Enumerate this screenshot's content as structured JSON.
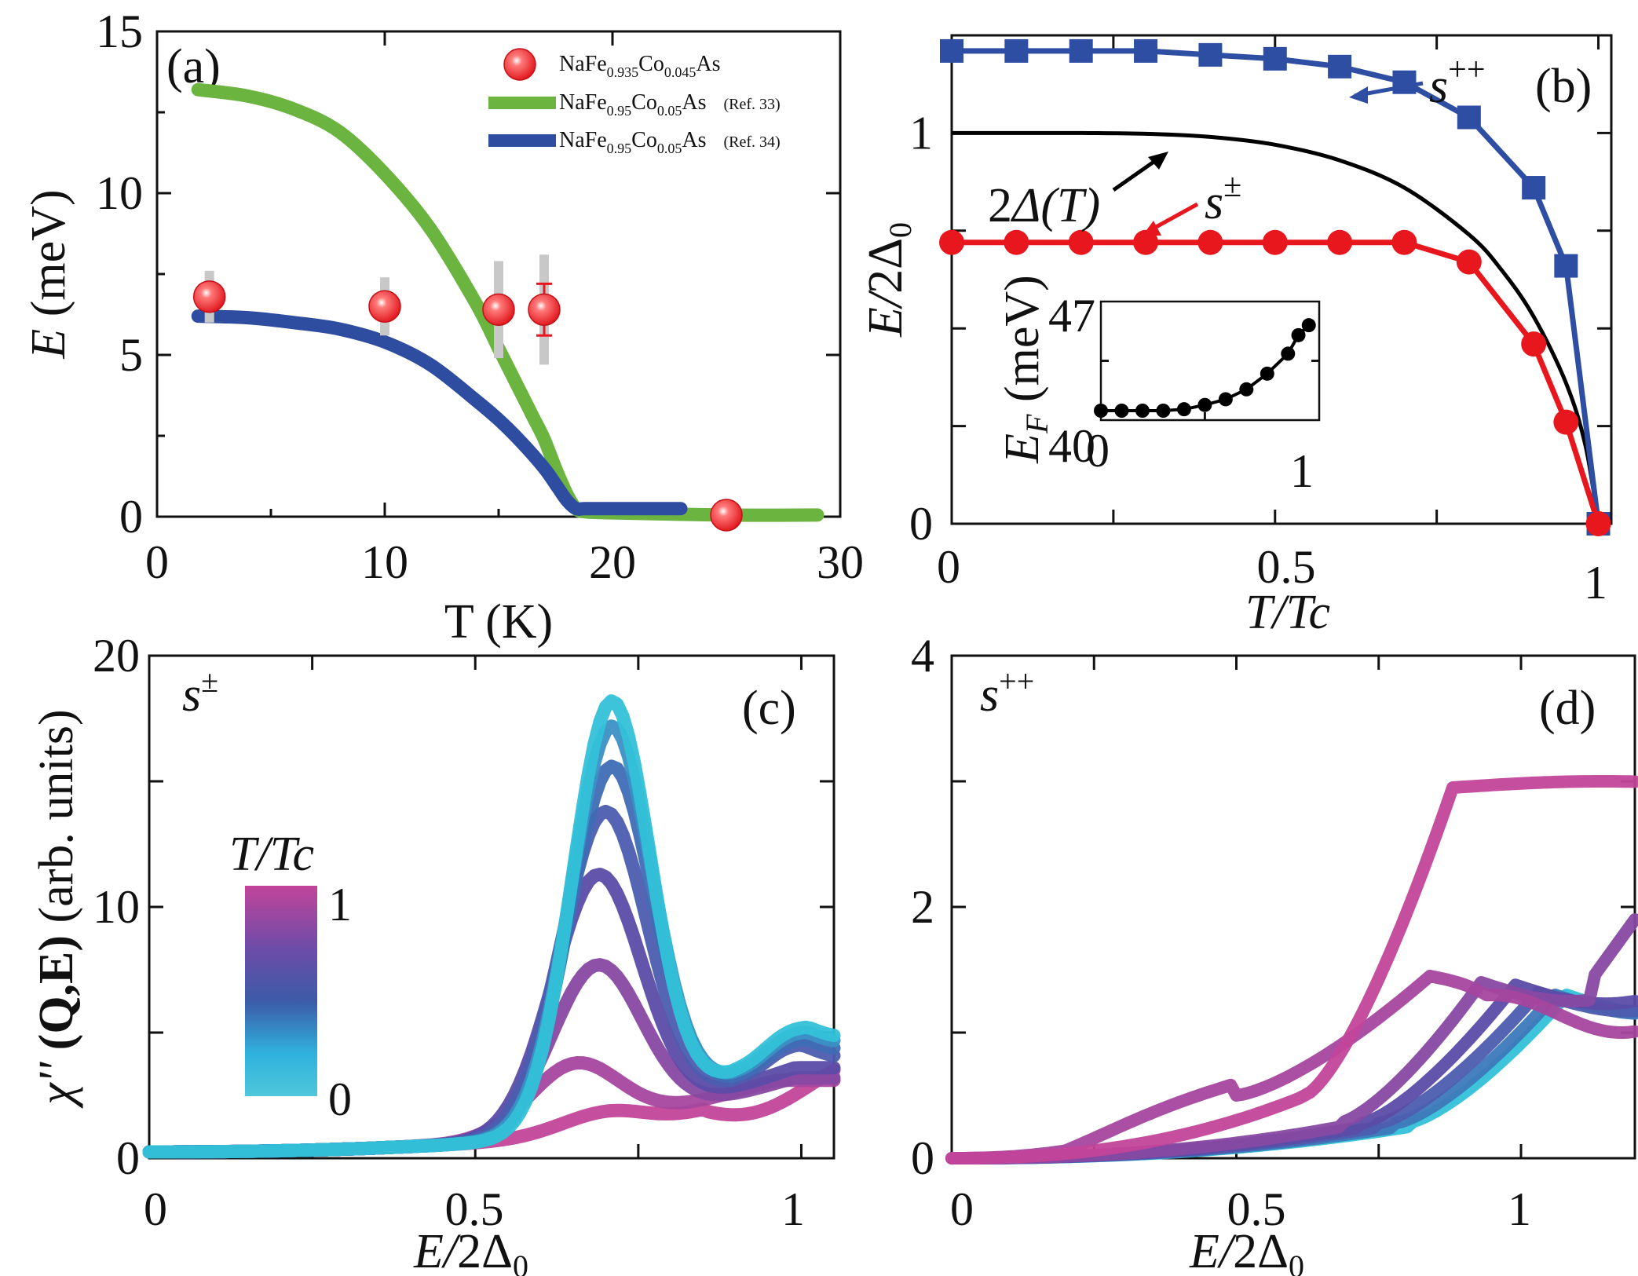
{
  "chart_data": [
    {
      "panel": "(a)",
      "type": "line",
      "xlabel": "T (K)",
      "ylabel": "E (meV)",
      "xlim": [
        0,
        30
      ],
      "ylim": [
        0,
        15
      ],
      "xticks": [
        "0",
        "10",
        "20",
        "30"
      ],
      "yticks": [
        "0",
        "5",
        "10",
        "15"
      ],
      "legend_position": "top-right",
      "series": [
        {
          "name": "NaFe0.935Co0.045As",
          "legend_parts": [
            "NaFe",
            "0.935",
            "Co",
            "0.045",
            "As",
            ""
          ],
          "kind": "points",
          "color": "#e8171d",
          "x": [
            2.3,
            10,
            15,
            17,
            25
          ],
          "y": [
            6.8,
            6.5,
            6.4,
            6.4,
            0.05
          ],
          "err": [
            0.8,
            0.9,
            1.5,
            1.7,
            0.3
          ]
        },
        {
          "name": "NaFe0.95Co0.05As (Ref. 33)",
          "legend_parts": [
            "NaFe",
            "0.95",
            "Co",
            "0.05",
            "As",
            "(Ref. 33)"
          ],
          "kind": "line",
          "color": "#6ab43f",
          "x": [
            1.8,
            4,
            6,
            8,
            10,
            12,
            14,
            15,
            16,
            16.5,
            17,
            17.5,
            18,
            18.4,
            18.8,
            20,
            25,
            29
          ],
          "y": [
            13.2,
            13.0,
            12.6,
            11.9,
            10.6,
            8.9,
            6.6,
            5.2,
            3.8,
            3.1,
            2.4,
            1.5,
            0.7,
            0.25,
            0.15,
            0.12,
            0.05,
            0.05
          ]
        },
        {
          "name": "NaFe0.95Co0.05As (Ref. 34)",
          "legend_parts": [
            "NaFe",
            "0.95",
            "Co",
            "0.05",
            "As",
            "(Ref. 34)"
          ],
          "kind": "line",
          "color": "#2e4da0",
          "x": [
            1.8,
            4,
            6,
            8,
            10,
            12,
            14,
            15,
            16,
            17,
            17.6,
            18,
            18.4,
            18.8,
            20,
            23
          ],
          "y": [
            6.2,
            6.15,
            6.0,
            5.8,
            5.4,
            4.7,
            3.6,
            3.0,
            2.3,
            1.5,
            0.9,
            0.5,
            0.25,
            0.25,
            0.25,
            0.25
          ]
        }
      ]
    },
    {
      "panel": "(b)",
      "type": "line",
      "xlabel": "T/Tc",
      "ylabel": "E/2Δ0",
      "xlim": [
        0,
        1.02
      ],
      "ylim": [
        0,
        1.25
      ],
      "xticks": [
        "0",
        "0.5",
        "1"
      ],
      "yticks": [
        "0",
        "1"
      ],
      "annotations": [
        "s++",
        "2Δ(T)",
        "s±"
      ],
      "series": [
        {
          "name": "s++",
          "color": "#2e4ea3",
          "x": [
            0,
            0.1,
            0.2,
            0.3,
            0.4,
            0.5,
            0.6,
            0.7,
            0.8,
            0.9,
            0.95,
            1.0
          ],
          "y": [
            1.21,
            1.21,
            1.21,
            1.21,
            1.2,
            1.19,
            1.17,
            1.13,
            1.04,
            0.86,
            0.66,
            0.0
          ]
        },
        {
          "name": "s±",
          "color": "#e8171d",
          "x": [
            0,
            0.1,
            0.2,
            0.3,
            0.4,
            0.5,
            0.6,
            0.7,
            0.8,
            0.9,
            0.95,
            1.0
          ],
          "y": [
            0.72,
            0.72,
            0.72,
            0.72,
            0.72,
            0.72,
            0.72,
            0.72,
            0.67,
            0.46,
            0.26,
            0.0
          ]
        },
        {
          "name": "2Δ(T)",
          "color": "#000000",
          "x": [
            0,
            0.1,
            0.2,
            0.3,
            0.4,
            0.5,
            0.6,
            0.7,
            0.8,
            0.85,
            0.9,
            0.95,
            0.98,
            1.0
          ],
          "y": [
            1.0,
            1.0,
            1.0,
            0.998,
            0.99,
            0.97,
            0.93,
            0.86,
            0.74,
            0.65,
            0.53,
            0.36,
            0.2,
            0.0
          ]
        }
      ],
      "inset": {
        "xlabel": "",
        "ylabel": "EF (meV)",
        "xlim": [
          0,
          1.05
        ],
        "ylim": [
          40,
          47
        ],
        "xticks": [
          "0",
          "1"
        ],
        "yticks": [
          "40",
          "47"
        ],
        "series": [
          {
            "name": "EF",
            "color": "#000000",
            "x": [
              0,
              0.1,
              0.2,
              0.3,
              0.4,
              0.5,
              0.6,
              0.7,
              0.8,
              0.9,
              0.95,
              1.0
            ],
            "y": [
              40.0,
              40.0,
              40.0,
              40.0,
              40.1,
              40.4,
              40.8,
              41.5,
              42.6,
              44.0,
              45.3,
              46.0
            ]
          }
        ]
      }
    },
    {
      "panel": "(c)",
      "type": "line",
      "xlabel": "E/2Δ0",
      "ylabel": "χ'' (Q,E) (arb. units)",
      "xlim": [
        0,
        1.05
      ],
      "ylim": [
        0,
        20
      ],
      "xticks": [
        "0",
        "0.5",
        "1"
      ],
      "yticks": [
        "0",
        "10",
        "20"
      ],
      "corner_label": "s±",
      "colorbar": {
        "label": "T/Tc",
        "min": "0",
        "max": "1",
        "low_color": "#33c1d8",
        "high_color": "#c2449a"
      },
      "series": [
        {
          "name": "T/Tc = 0.0",
          "t": 0.0,
          "peak_x": 0.71,
          "peak_y": 18.2,
          "tail_y": 4.8
        },
        {
          "name": "T/Tc = 0.2",
          "t": 0.2,
          "peak_x": 0.71,
          "peak_y": 17.2,
          "tail_y": 4.6
        },
        {
          "name": "T/Tc = 0.35",
          "t": 0.35,
          "peak_x": 0.71,
          "peak_y": 15.6,
          "tail_y": 4.3
        },
        {
          "name": "T/Tc = 0.5",
          "t": 0.5,
          "peak_x": 0.7,
          "peak_y": 13.8,
          "tail_y": 4.0
        },
        {
          "name": "T/Tc = 0.65",
          "t": 0.65,
          "peak_x": 0.69,
          "peak_y": 11.3,
          "tail_y": 3.6
        },
        {
          "name": "T/Tc = 0.8",
          "t": 0.8,
          "peak_x": 0.69,
          "peak_y": 7.7,
          "tail_y": 3.2
        },
        {
          "name": "T/Tc = 0.9",
          "t": 0.9,
          "peak_x": 0.66,
          "peak_y": 3.8,
          "tail_y": 3.1
        },
        {
          "name": "T/Tc = 1.0",
          "t": 1.0,
          "peak_x": 0.72,
          "peak_y": 1.9,
          "tail_y": 3.2
        }
      ]
    },
    {
      "panel": "(d)",
      "type": "line",
      "xlabel": "E/2Δ0",
      "ylabel": "",
      "xlim": [
        0,
        1.2
      ],
      "ylim": [
        0,
        4
      ],
      "xticks": [
        "0",
        "0.5",
        "1"
      ],
      "yticks": [
        "0",
        "2",
        "4"
      ],
      "corner_label": "s++",
      "series": [
        {
          "name": "T/Tc = 0.0",
          "t": 0.0,
          "onset_x": 0.8,
          "step_x": 1.08,
          "step_y": 1.3
        },
        {
          "name": "T/Tc = 0.3",
          "t": 0.3,
          "onset_x": 0.78,
          "step_x": 1.06,
          "step_y": 1.3
        },
        {
          "name": "T/Tc = 0.5",
          "t": 0.5,
          "onset_x": 0.75,
          "step_x": 1.03,
          "step_y": 1.32
        },
        {
          "name": "T/Tc = 0.65",
          "t": 0.65,
          "onset_x": 0.72,
          "step_x": 0.99,
          "step_y": 1.38
        },
        {
          "name": "T/Tc = 0.8",
          "t": 0.8,
          "onset_x": 0.68,
          "step_x": 0.93,
          "step_y": 1.4
        },
        {
          "name": "T/Tc = 0.9",
          "t": 0.9,
          "onset_x": 0.5,
          "step_x": 0.84,
          "step_y": 1.45
        },
        {
          "name": "T/Tc = 1.0",
          "t": 1.0,
          "onset_x": 0.62,
          "step_x": 0.88,
          "step_y": 2.95
        }
      ]
    }
  ]
}
